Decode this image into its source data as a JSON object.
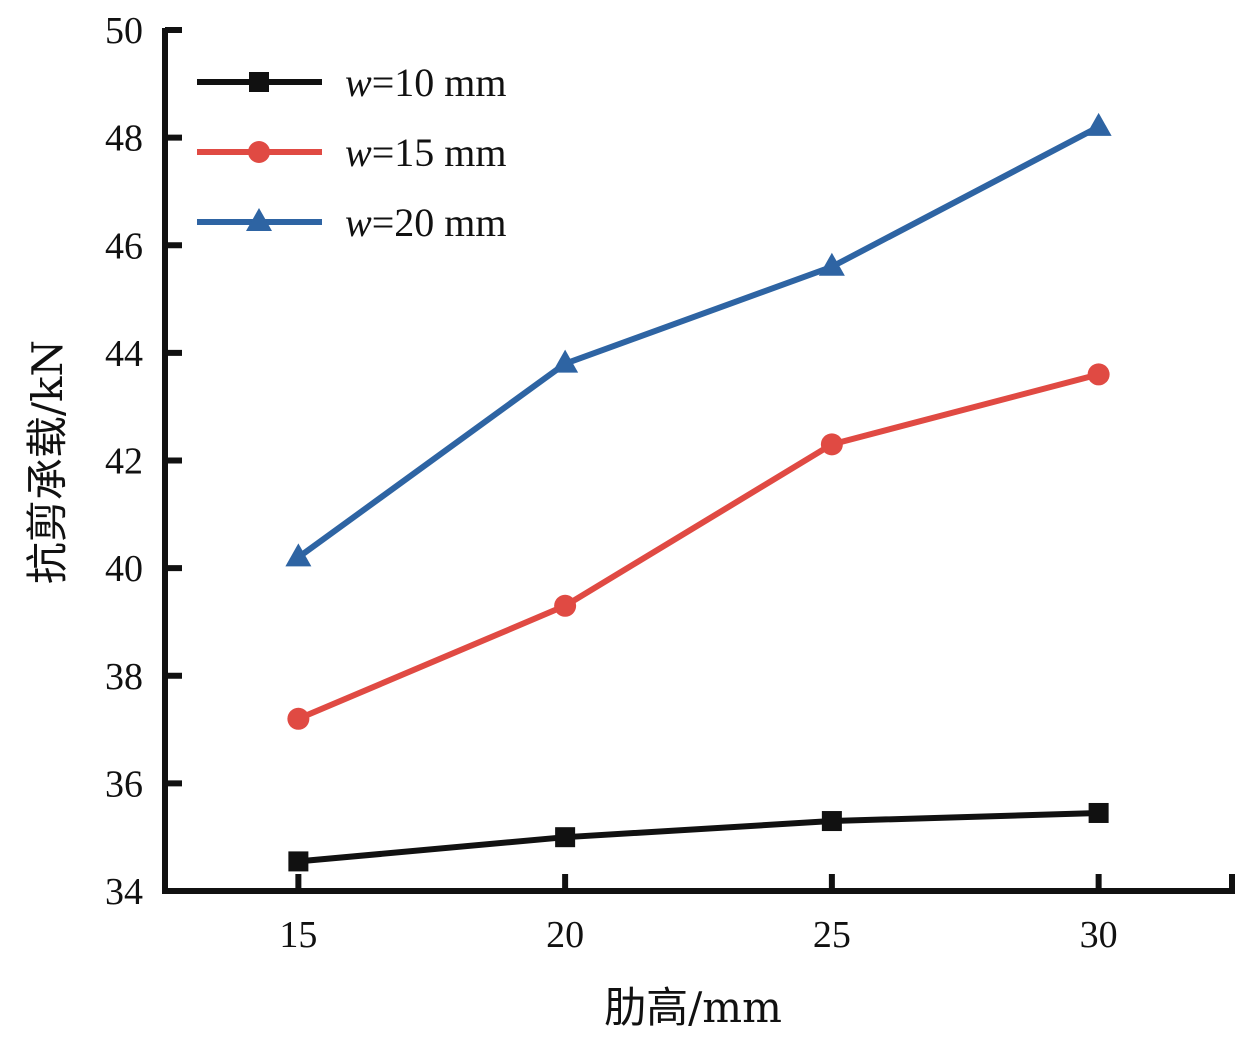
{
  "chart_data": {
    "type": "line",
    "title": "",
    "xlabel": "肋高/mm",
    "ylabel": "抗剪承载/kN",
    "x": [
      15,
      20,
      25,
      30
    ],
    "xlim": [
      12.5,
      32.5
    ],
    "ylim": [
      34,
      50
    ],
    "xticks": [
      15,
      20,
      25,
      30
    ],
    "yticks": [
      34,
      36,
      38,
      40,
      42,
      44,
      46,
      48,
      50
    ],
    "grid": false,
    "legend_position": "top-left",
    "series": [
      {
        "name": "w=10 mm",
        "name_var": "w",
        "name_rest": "=10 mm",
        "color": "#111111",
        "marker": "square",
        "values": [
          34.55,
          35.0,
          35.3,
          35.45
        ]
      },
      {
        "name": "w=15 mm",
        "name_var": "w",
        "name_rest": "=15 mm",
        "color": "#e04a43",
        "marker": "circle",
        "values": [
          37.2,
          39.3,
          42.3,
          43.6
        ]
      },
      {
        "name": "w=20 mm",
        "name_var": "w",
        "name_rest": "=20 mm",
        "color": "#2e64a3",
        "marker": "triangle",
        "values": [
          40.2,
          43.8,
          45.6,
          48.2
        ]
      }
    ]
  }
}
